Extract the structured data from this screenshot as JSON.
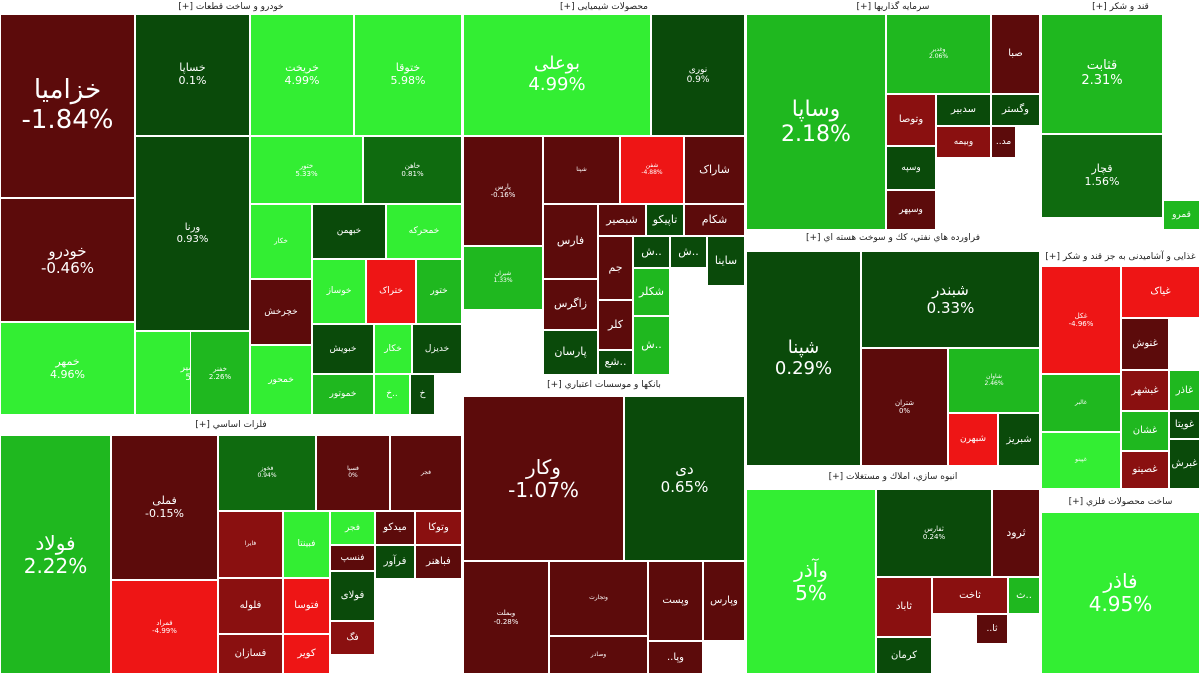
{
  "palette": {
    "lg": "#33ee33",
    "mg": "#1fb81f",
    "dg": "#0f6b0f",
    "vg": "#0a4a0a",
    "dr": "#5c0b0b",
    "mr": "#8a1010",
    "br": "#ee1515"
  },
  "sectors": [
    {
      "id": "s1",
      "title": "خودرو و ساخت قطعات [+]",
      "cells": [
        {
          "sym": "خزامیا",
          "pct": "-1.84%",
          "c": "dr"
        },
        {
          "sym": "خودرو",
          "pct": "-0.46%",
          "c": "dr"
        },
        {
          "sym": "خمهر",
          "pct": "4.96%",
          "c": "lg"
        },
        {
          "sym": "خساپا",
          "pct": "0.1%",
          "c": "vg"
        },
        {
          "sym": "خریخت",
          "pct": "4.99%",
          "c": "lg"
        },
        {
          "sym": "ختوقا",
          "pct": "5.98%",
          "c": "lg"
        },
        {
          "sym": "ورنا",
          "pct": "0.93%",
          "c": "vg"
        },
        {
          "sym": "خنصیر",
          "pct": "5%",
          "c": "lg"
        },
        {
          "sym": "ختور",
          "pct": "5.33%",
          "c": "lg"
        },
        {
          "sym": "خاهن",
          "pct": "0.81%",
          "c": "dg"
        },
        {
          "sym": "خفنر",
          "pct": "2.26%",
          "c": "mg"
        },
        {
          "sym": "خکار",
          "pct": "",
          "c": "lg"
        },
        {
          "sym": "خبهمن",
          "pct": "",
          "c": "vg"
        },
        {
          "sym": "خمحرکه",
          "pct": "",
          "c": "lg"
        },
        {
          "sym": "خچرخش",
          "pct": "",
          "c": "dr"
        },
        {
          "sym": "خوساز",
          "pct": "",
          "c": "lg"
        },
        {
          "sym": "ختراک",
          "pct": "",
          "c": "br"
        },
        {
          "sym": "ختور",
          "pct": "",
          "c": "mg"
        },
        {
          "sym": "خمحور",
          "pct": "",
          "c": "lg"
        },
        {
          "sym": "خبویش",
          "pct": "",
          "c": "vg"
        },
        {
          "sym": "خکار",
          "pct": "",
          "c": "lg"
        },
        {
          "sym": "خدیزل",
          "pct": "",
          "c": "vg"
        },
        {
          "sym": "خموتور",
          "pct": "",
          "c": "mg"
        },
        {
          "sym": "خ..",
          "pct": "",
          "c": "lg"
        },
        {
          "sym": "خ",
          "pct": "",
          "c": "vg"
        }
      ]
    },
    {
      "id": "s2",
      "title": "محصولات شیمیایی [+]",
      "cells": [
        {
          "sym": "بوعلی",
          "pct": "4.99%",
          "c": "lg"
        },
        {
          "sym": "نوری",
          "pct": "0.9%",
          "c": "vg"
        },
        {
          "sym": "پارس",
          "pct": "-0.16%",
          "c": "dr"
        },
        {
          "sym": "شپنا",
          "pct": "",
          "c": "dr"
        },
        {
          "sym": "شفن",
          "pct": "-4.88%",
          "c": "br"
        },
        {
          "sym": "شاراک",
          "pct": "",
          "c": "dr"
        },
        {
          "sym": "فارس",
          "pct": "",
          "c": "dr"
        },
        {
          "sym": "شبصیر",
          "pct": "",
          "c": "dr"
        },
        {
          "sym": "تاپیکو",
          "pct": "",
          "c": "vg"
        },
        {
          "sym": "شکام",
          "pct": "",
          "c": "dr"
        },
        {
          "sym": "شیران",
          "pct": "1.33%",
          "c": "mg"
        },
        {
          "sym": "جم",
          "pct": "",
          "c": "dr"
        },
        {
          "sym": "ش..",
          "pct": "",
          "c": "vg"
        },
        {
          "sym": "ش..",
          "pct": "",
          "c": "vg"
        },
        {
          "sym": "ساینا",
          "pct": "",
          "c": "vg"
        },
        {
          "sym": "زاگرس",
          "pct": "",
          "c": "dr"
        },
        {
          "sym": "کلر",
          "pct": "",
          "c": "dr"
        },
        {
          "sym": "شکلر",
          "pct": "",
          "c": "mg"
        },
        {
          "sym": "پارسان",
          "pct": "",
          "c": "vg"
        },
        {
          "sym": "شع..",
          "pct": "",
          "c": "vg"
        },
        {
          "sym": "ش..",
          "pct": "",
          "c": "mg"
        }
      ]
    },
    {
      "id": "s3",
      "title": "سرمایه گذاریها [+]",
      "cells": [
        {
          "sym": "وساپا",
          "pct": "2.18%",
          "c": "mg"
        },
        {
          "sym": "وغدیر",
          "pct": "2.06%",
          "c": "mg"
        },
        {
          "sym": "صبا",
          "pct": "",
          "c": "dr"
        },
        {
          "sym": "وتوصا",
          "pct": "",
          "c": "mr"
        },
        {
          "sym": "سدبیر",
          "pct": "",
          "c": "vg"
        },
        {
          "sym": "وگستر",
          "pct": "",
          "c": "vg"
        },
        {
          "sym": "وبیمه",
          "pct": "",
          "c": "mr"
        },
        {
          "sym": "..مد",
          "pct": "",
          "c": "dr"
        },
        {
          "sym": "وسپه",
          "pct": "",
          "c": "vg"
        },
        {
          "sym": "وسپهر",
          "pct": "",
          "c": "dr"
        }
      ]
    },
    {
      "id": "s4",
      "title": "قند و شکر [+]",
      "cells": [
        {
          "sym": "قثابت",
          "pct": "2.31%",
          "c": "mg"
        },
        {
          "sym": "قچار",
          "pct": "1.56%",
          "c": "dg"
        },
        {
          "sym": "قمرو",
          "pct": "",
          "c": "mg"
        }
      ]
    },
    {
      "id": "s5",
      "title": "فراورده هاي نفتي، كك و سوخت هسته اي [+]",
      "cells": [
        {
          "sym": "شپنا",
          "pct": "0.29%",
          "c": "vg"
        },
        {
          "sym": "شبندر",
          "pct": "0.33%",
          "c": "vg"
        },
        {
          "sym": "شتران",
          "pct": "0%",
          "c": "dr"
        },
        {
          "sym": "شاوان",
          "pct": "2.46%",
          "c": "mg"
        },
        {
          "sym": "شبهرن",
          "pct": "",
          "c": "br"
        },
        {
          "sym": "شبریز",
          "pct": "",
          "c": "vg"
        }
      ]
    },
    {
      "id": "s6",
      "title": "غذایی و آشامیدنی به جز قند و شکر [+]",
      "cells": [
        {
          "sym": "غکل",
          "pct": "-4.96%",
          "c": "br"
        },
        {
          "sym": "غیاک",
          "pct": "",
          "c": "br"
        },
        {
          "sym": "غنوش",
          "pct": "",
          "c": "dr"
        },
        {
          "sym": "غبشهر",
          "pct": "",
          "c": "mr"
        },
        {
          "sym": "غاذر",
          "pct": "",
          "c": "mg"
        },
        {
          "sym": "غالبر",
          "pct": "",
          "c": "mg"
        },
        {
          "sym": "غشان",
          "pct": "",
          "c": "mg"
        },
        {
          "sym": "غویتا",
          "pct": "",
          "c": "vg"
        },
        {
          "sym": "غپینو",
          "pct": "",
          "c": "lg"
        },
        {
          "sym": "غصینو",
          "pct": "",
          "c": "mr"
        },
        {
          "sym": "غبرش",
          "pct": "",
          "c": "vg"
        }
      ]
    },
    {
      "id": "s7",
      "title": "فلزات اساسي [+]",
      "cells": [
        {
          "sym": "فولاد",
          "pct": "2.22%",
          "c": "mg"
        },
        {
          "sym": "فملی",
          "pct": "-0.15%",
          "c": "dr"
        },
        {
          "sym": "فخوز",
          "pct": "0.94%",
          "c": "dg"
        },
        {
          "sym": "فسپا",
          "pct": "0%",
          "c": "dr"
        },
        {
          "sym": "فجر",
          "pct": "",
          "c": "lg"
        },
        {
          "sym": "فمراد",
          "pct": "-4.99%",
          "c": "br"
        },
        {
          "sym": "فایرا",
          "pct": "",
          "c": "mr"
        },
        {
          "sym": "فبینتا",
          "pct": "",
          "c": "lg"
        },
        {
          "sym": "فجر",
          "pct": "",
          "c": "dr"
        },
        {
          "sym": "میدکو",
          "pct": "",
          "c": "dr"
        },
        {
          "sym": "وتوکا",
          "pct": "",
          "c": "mr"
        },
        {
          "sym": "فنسپ",
          "pct": "",
          "c": "dr"
        },
        {
          "sym": "فرآور",
          "pct": "",
          "c": "vg"
        },
        {
          "sym": "فباهنر",
          "pct": "",
          "c": "dr"
        },
        {
          "sym": "فلوله",
          "pct": "",
          "c": "mr"
        },
        {
          "sym": "فتوسا",
          "pct": "",
          "c": "br"
        },
        {
          "sym": "فولای",
          "pct": "",
          "c": "vg"
        },
        {
          "sym": "فسازان",
          "pct": "",
          "c": "mr"
        },
        {
          "sym": "کویر",
          "pct": "",
          "c": "br"
        },
        {
          "sym": "فگ",
          "pct": "",
          "c": "mr"
        }
      ]
    },
    {
      "id": "s8",
      "title": "بانكها و موسسات اعتباري [+]",
      "cells": [
        {
          "sym": "وکار",
          "pct": "-1.07%",
          "c": "dr"
        },
        {
          "sym": "دی",
          "pct": "0.65%",
          "c": "vg"
        },
        {
          "sym": "وبملت",
          "pct": "-0.28%",
          "c": "dr"
        },
        {
          "sym": "وتجارت",
          "pct": "",
          "c": "dr"
        },
        {
          "sym": "وپست",
          "pct": "",
          "c": "dr"
        },
        {
          "sym": "وپارس",
          "pct": "",
          "c": "dr"
        },
        {
          "sym": "وصادر",
          "pct": "",
          "c": "dr"
        },
        {
          "sym": "..وپا",
          "pct": "",
          "c": "dr"
        }
      ]
    },
    {
      "id": "s9",
      "title": "انبوه سازي، املاك و مستغلات [+]",
      "cells": [
        {
          "sym": "وآذر",
          "pct": "5%",
          "c": "lg"
        },
        {
          "sym": "ثفارس",
          "pct": "0.24%",
          "c": "vg"
        },
        {
          "sym": "ثرود",
          "pct": "",
          "c": "dr"
        },
        {
          "sym": "ثاخت",
          "pct": "",
          "c": "mr"
        },
        {
          "sym": "ثاباد",
          "pct": "",
          "c": "mr"
        },
        {
          "sym": "ث..",
          "pct": "",
          "c": "mg"
        },
        {
          "sym": "..ثا",
          "pct": "",
          "c": "dr"
        },
        {
          "sym": "کرمان",
          "pct": "",
          "c": "vg"
        }
      ]
    },
    {
      "id": "s10",
      "title": "ساخت محصولات فلزي [+]",
      "cells": [
        {
          "sym": "فاذر",
          "pct": "4.95%",
          "c": "lg"
        }
      ]
    }
  ]
}
